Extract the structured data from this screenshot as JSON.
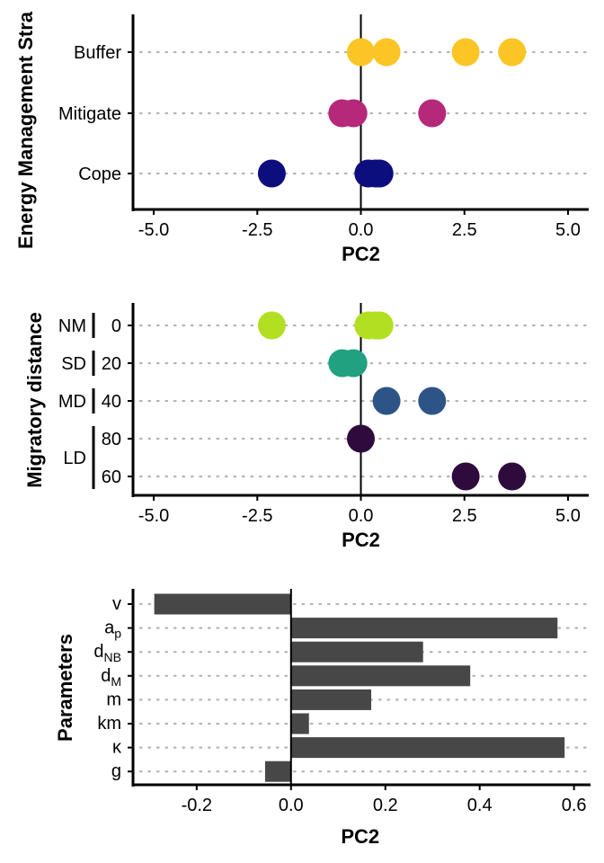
{
  "chart_data": [
    {
      "type": "scatter",
      "xlabel": "PC2",
      "ylabel": "Energy Management Stra",
      "xlim": [
        -5.5,
        5.5
      ],
      "xticks": [
        "-5.0",
        "-2.5",
        "0.0",
        "2.5",
        "5.0"
      ],
      "xtick_values": [
        -5,
        -2.5,
        0,
        2.5,
        5
      ],
      "categories": [
        "Buffer",
        "Mitigate",
        "Cope"
      ],
      "vline": 0,
      "grid": "dotted horizontal",
      "series": [
        {
          "category": "Buffer",
          "color": "#fbc526",
          "x": [
            0.0,
            0.62,
            2.53,
            3.65
          ]
        },
        {
          "category": "Mitigate",
          "color": "#b5287a",
          "x": [
            -0.45,
            -0.18,
            1.72
          ]
        },
        {
          "category": "Cope",
          "color": "#0c0e7e",
          "x": [
            -2.15,
            0.18,
            0.35,
            0.45
          ]
        }
      ]
    },
    {
      "type": "scatter",
      "xlabel": "PC2",
      "ylabel": "Migratory distance",
      "xlim": [
        -5.5,
        5.5
      ],
      "xticks": [
        "-5.0",
        "-2.5",
        "0.0",
        "2.5",
        "5.0"
      ],
      "xtick_values": [
        -5,
        -2.5,
        0,
        2.5,
        5
      ],
      "categories": [
        "0",
        "20",
        "40",
        "80",
        "60"
      ],
      "groups": [
        {
          "label": "NM",
          "categories": [
            "0"
          ]
        },
        {
          "label": "SD",
          "categories": [
            "20"
          ]
        },
        {
          "label": "MD",
          "categories": [
            "40"
          ]
        },
        {
          "label": "LD",
          "categories": [
            "80",
            "60"
          ]
        }
      ],
      "vline": 0,
      "grid": "dotted horizontal",
      "series": [
        {
          "category": "0",
          "color": "#b2df22",
          "x": [
            -2.15,
            0.18,
            0.35,
            0.45
          ]
        },
        {
          "category": "20",
          "color": "#21a17f",
          "x": [
            -0.45,
            -0.18
          ]
        },
        {
          "category": "40",
          "color": "#2d5487",
          "x": [
            0.62,
            1.72
          ]
        },
        {
          "category": "80",
          "color": "#2e0a3d",
          "x": [
            0.0
          ]
        },
        {
          "category": "60",
          "color": "#2e0a3d",
          "x": [
            2.53,
            3.65
          ]
        }
      ]
    },
    {
      "type": "bar",
      "orientation": "horizontal",
      "xlabel": "PC2",
      "ylabel": "Parameters",
      "xlim": [
        -0.335,
        0.635
      ],
      "xticks": [
        "-0.2",
        "0.0",
        "0.2",
        "0.4",
        "0.6"
      ],
      "xtick_values": [
        -0.2,
        0,
        0.2,
        0.4,
        0.6
      ],
      "vline": 0,
      "grid": "dotted horizontal",
      "bar_color": "#474747",
      "categories": [
        {
          "main": "v",
          "sub": ""
        },
        {
          "main": "a",
          "sub": "p"
        },
        {
          "main": "d",
          "sub": "NB"
        },
        {
          "main": "d",
          "sub": "M"
        },
        {
          "main": "m",
          "sub": ""
        },
        {
          "main": "km",
          "sub": ""
        },
        {
          "main": "κ",
          "sub": ""
        },
        {
          "main": "g",
          "sub": ""
        }
      ],
      "values": [
        -0.29,
        0.565,
        0.28,
        0.38,
        0.17,
        0.038,
        0.58,
        -0.055
      ]
    }
  ]
}
